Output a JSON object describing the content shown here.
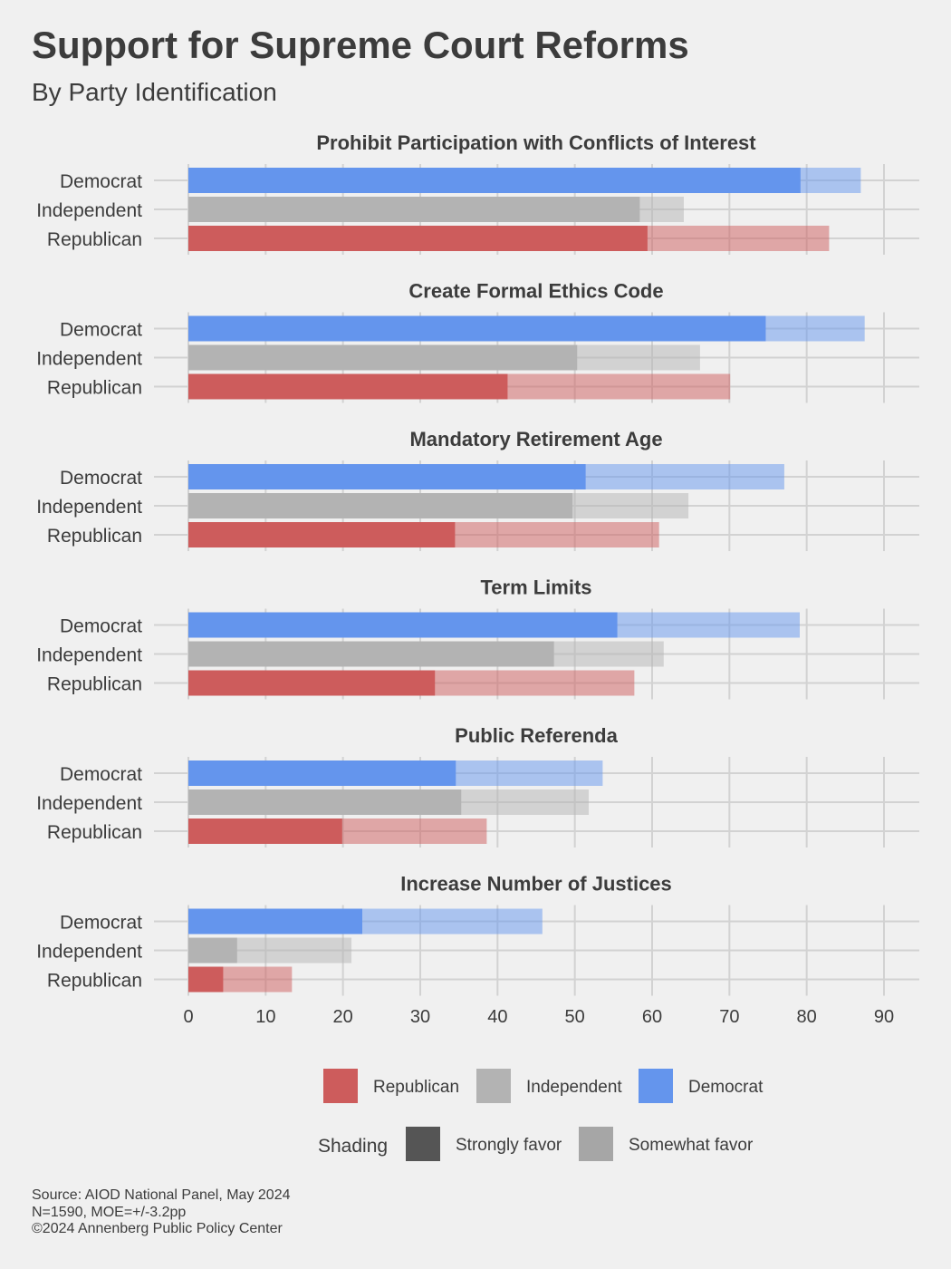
{
  "title": "Support for Supreme Court Reforms",
  "subtitle": "By Party Identification",
  "chart_data": {
    "type": "bar",
    "orientation": "horizontal",
    "stacked_shading": true,
    "xlim": [
      0,
      95
    ],
    "xticks": [
      0,
      10,
      20,
      30,
      40,
      50,
      60,
      70,
      80,
      90
    ],
    "groups": [
      "Democrat",
      "Independent",
      "Republican"
    ],
    "colors": {
      "Republican": "#cd5c5c",
      "Independent": "#b3b3b3",
      "Democrat": "#6495ed"
    },
    "panels": [
      {
        "title": "Prohibit Participation with Conflicts of Interest",
        "strongly": [
          79.2,
          58.4,
          59.4
        ],
        "total": [
          87.0,
          64.1,
          82.9
        ]
      },
      {
        "title": "Create Formal Ethics Code",
        "strongly": [
          74.7,
          50.3,
          41.3
        ],
        "total": [
          87.5,
          66.2,
          70.1
        ]
      },
      {
        "title": "Mandatory Retirement Age",
        "strongly": [
          51.4,
          49.7,
          34.5
        ],
        "total": [
          77.1,
          64.7,
          60.9
        ]
      },
      {
        "title": "Term Limits",
        "strongly": [
          55.5,
          47.3,
          31.9
        ],
        "total": [
          79.1,
          61.5,
          57.7
        ]
      },
      {
        "title": "Public Referenda",
        "strongly": [
          34.6,
          35.3,
          19.9
        ],
        "total": [
          53.6,
          51.8,
          38.6
        ]
      },
      {
        "title": "Increase Number of Justices",
        "strongly": [
          22.5,
          6.3,
          4.5
        ],
        "total": [
          45.8,
          21.1,
          13.4
        ]
      }
    ],
    "legend": {
      "party_items": [
        "Republican",
        "Independent",
        "Democrat"
      ],
      "shading_title": "Shading",
      "shading_items": [
        "Strongly favor",
        "Somewhat favor"
      ],
      "shading_colors": [
        "#555555",
        "#a6a6a6"
      ],
      "placement": "bottom"
    }
  },
  "footer": [
    "Source: AIOD National Panel, May 2024",
    "N=1590, MOE=+/-3.2pp",
    "©2024 Annenberg Public Policy Center"
  ]
}
